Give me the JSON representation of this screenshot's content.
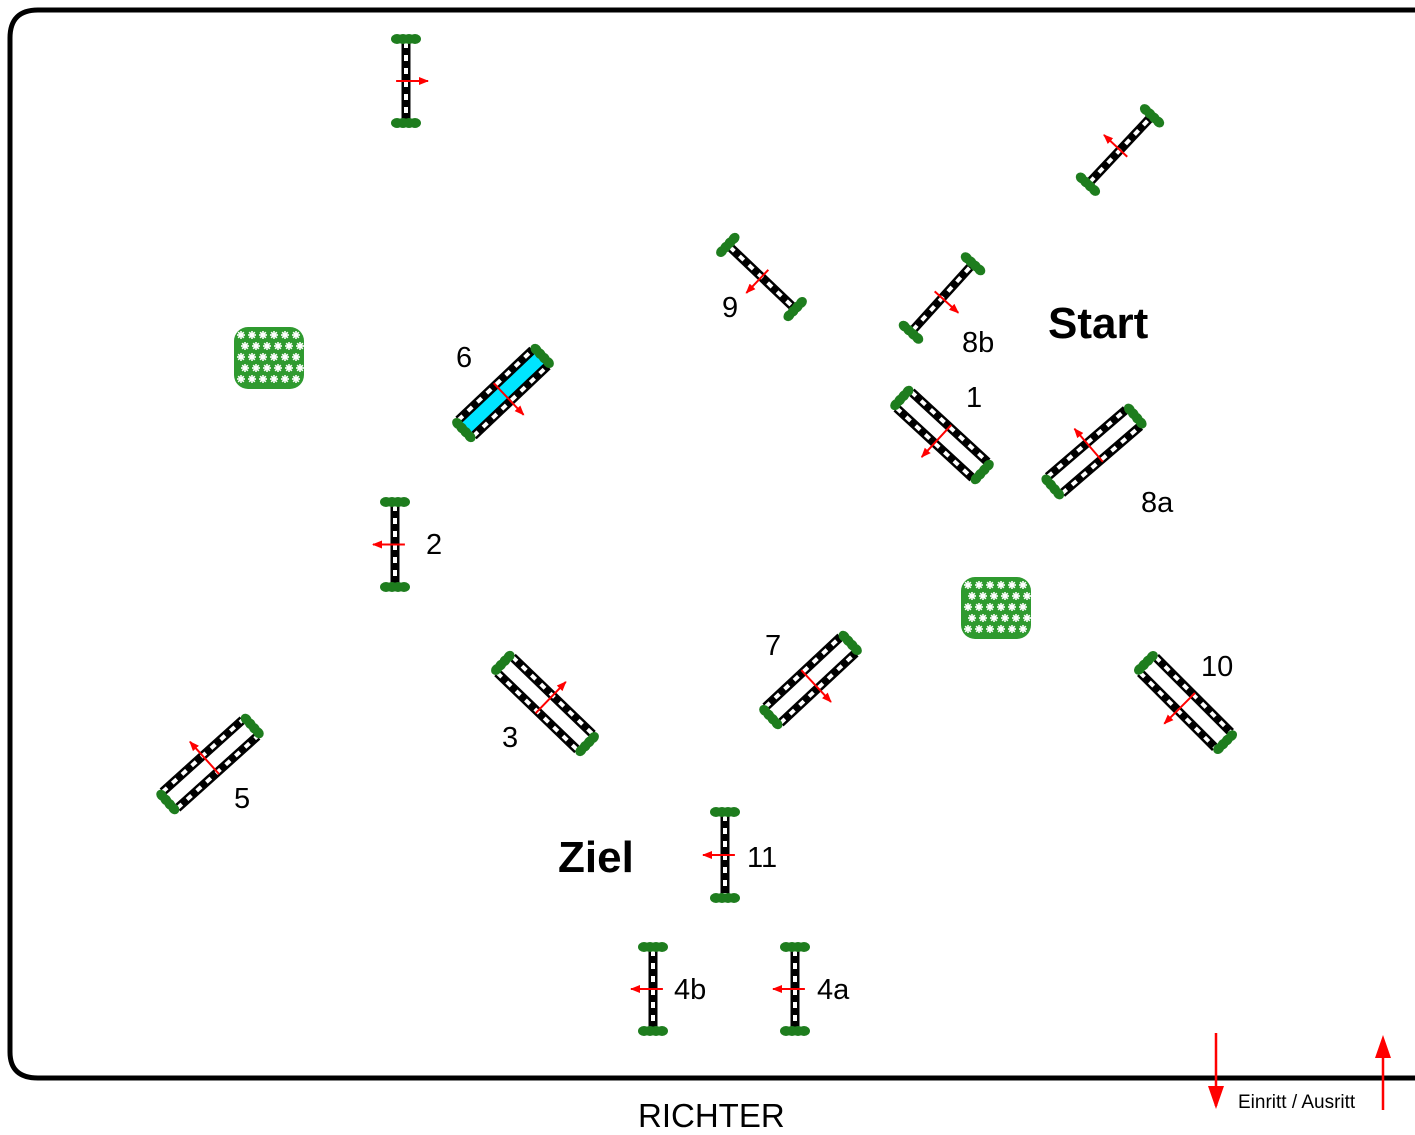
{
  "course": {
    "start_label": "Start",
    "finish_label": "Ziel",
    "judge_label": "RICHTER",
    "entry_exit_label": "Einritt / Ausritt",
    "colors": {
      "pole_dark": "#000000",
      "pole_light": "#ffffff",
      "standard_green": "#1e7d1e",
      "flowerbed_green": "#2f9a2f",
      "direction_arrow": "#ff0000",
      "water_tray": "#00e5ff",
      "arena_border": "#000000"
    }
  },
  "obstacles": [
    {
      "id": "1",
      "type": "oxer",
      "label": "1"
    },
    {
      "id": "2",
      "type": "vertical",
      "label": "2"
    },
    {
      "id": "3",
      "type": "oxer",
      "label": "3"
    },
    {
      "id": "4a",
      "type": "vertical",
      "label": "4a"
    },
    {
      "id": "4b",
      "type": "vertical",
      "label": "4b"
    },
    {
      "id": "5",
      "type": "oxer",
      "label": "5"
    },
    {
      "id": "6",
      "type": "water-oxer",
      "label": "6"
    },
    {
      "id": "7",
      "type": "oxer",
      "label": "7"
    },
    {
      "id": "8a",
      "type": "oxer",
      "label": "8a"
    },
    {
      "id": "8b",
      "type": "vertical",
      "label": "8b"
    },
    {
      "id": "9",
      "type": "vertical",
      "label": "9"
    },
    {
      "id": "10",
      "type": "oxer",
      "label": "10"
    },
    {
      "id": "11",
      "type": "vertical",
      "label": "11"
    },
    {
      "id": "unnumbered-top-left",
      "type": "vertical",
      "label": ""
    },
    {
      "id": "unnumbered-top-right",
      "type": "vertical",
      "label": ""
    }
  ],
  "decorations": [
    {
      "id": "flowerbed-left",
      "type": "flowerbed"
    },
    {
      "id": "flowerbed-center",
      "type": "flowerbed"
    }
  ]
}
